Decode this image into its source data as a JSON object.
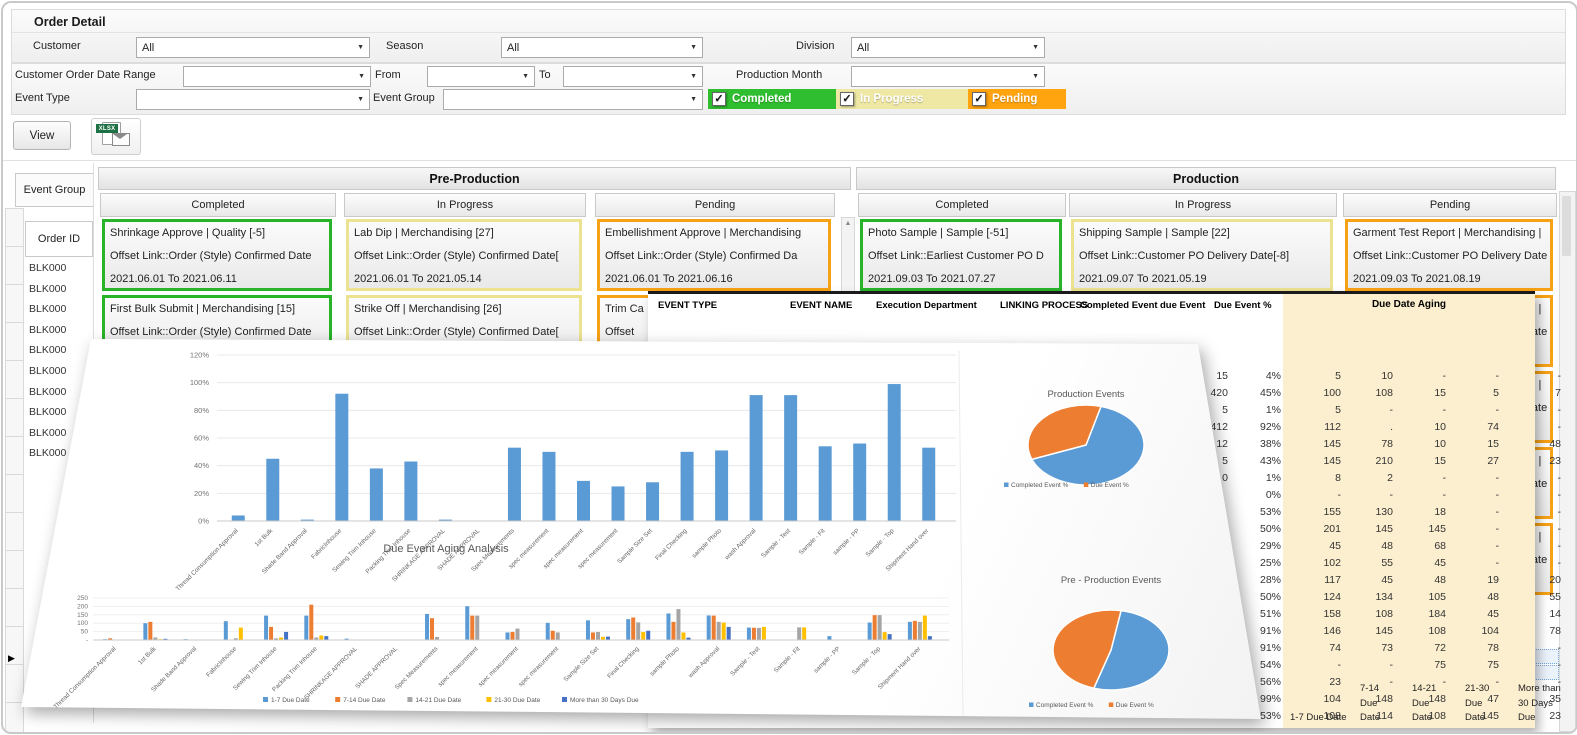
{
  "filters": {
    "title": "Order Detail",
    "customer": {
      "label": "Customer",
      "value": "All"
    },
    "season": {
      "label": "Season",
      "value": "All"
    },
    "division": {
      "label": "Division",
      "value": "All"
    },
    "order_date_range": {
      "label": "Customer Order Date Range",
      "value": ""
    },
    "from": {
      "label": "From",
      "value": ""
    },
    "to": {
      "label": "To",
      "value": ""
    },
    "production_month": {
      "label": "Production Month",
      "value": ""
    },
    "event_type": {
      "label": "Event Type",
      "value": ""
    },
    "event_group": {
      "label": "Event Group",
      "value": ""
    },
    "toggles": [
      {
        "label": "Completed",
        "color": "#2fbe2f"
      },
      {
        "label": "In Progress",
        "color": "#efe8a5"
      },
      {
        "label": "Pending",
        "color": "#ffa30f"
      }
    ]
  },
  "toolbar": {
    "view_label": "View",
    "export_icon": "xlsx-mail-icon",
    "export_tag": "XLSX"
  },
  "grid": {
    "event_group_label": "Event Group",
    "order_id_label": "Order ID",
    "order_ids": [
      "BLK000",
      "BLK000",
      "BLK000",
      "BLK000",
      "BLK000",
      "BLK000",
      "BLK000",
      "BLK000",
      "BLK000",
      "BLK000"
    ],
    "sections": [
      {
        "title": "Pre-Production",
        "columns": [
          {
            "status": "Completed",
            "accent": "#29b329",
            "cards": [
              {
                "lines": [
                  "Shrinkage Approve | Quality [-5]",
                  "Offset Link::Order (Style) Confirmed Date",
                  "2021.06.01 To 2021.06.11"
                ]
              },
              {
                "lines": [
                  "First Bulk Submit | Merchandising  [15]",
                  "Offset Link::Order (Style) Confirmed Date",
                  ""
                ]
              }
            ]
          },
          {
            "status": "In Progress",
            "accent": "#ece28f",
            "cards": [
              {
                "lines": [
                  "Lab Dip | Merchandising  [27]",
                  "Offset Link::Order (Style) Confirmed Date[",
                  "2021.06.01 To 2021.05.14"
                ]
              },
              {
                "lines": [
                  "Strike Off | Merchandising  [26]",
                  "Offset Link::Order (Style) Confirmed Date[",
                  ""
                ]
              }
            ]
          },
          {
            "status": "Pending",
            "accent": "#f7a114",
            "cards": [
              {
                "lines": [
                  "Embellishment Approve | Merchandising",
                  "Offset Link::Order (Style) Confirmed Da",
                  "2021.06.01 To 2021.06.16"
                ]
              },
              {
                "lines": [
                  "Trim Ca",
                  "Offset ",
                  ""
                ]
              }
            ]
          }
        ]
      },
      {
        "title": "Production",
        "columns": [
          {
            "status": "Completed",
            "accent": "#29b329",
            "cards": [
              {
                "lines": [
                  "Photo Sample | Sample  [-51]",
                  "Offset Link::Earliest Customer PO D",
                  "2021.09.03 To 2021.07.27"
                ]
              }
            ]
          },
          {
            "status": "In Progress",
            "accent": "#ece28f",
            "cards": [
              {
                "lines": [
                  "Shipping Sample | Sample  [22]",
                  "Offset Link::Customer PO Delivery Date[-8]",
                  "2021.09.07 To 2021.05.19"
                ]
              }
            ]
          },
          {
            "status": "Pending",
            "accent": "#f7a114",
            "cards": [
              {
                "lines": [
                  "Garment Test Report | Merchandising |",
                  "Offset Link::Customer PO Delivery Date",
                  "2021.09.03 To 2021.08.19"
                ]
              },
              {
                "lines": [
                  "Garment Test Report | Merchandising |",
                  "Offset Link::Customer PO Delivery Date",
                  ""
                ]
              },
              {
                "lines": [
                  "Garment Test Report | Merchandising |",
                  "Offset Link::Customer PO Delivery Date",
                  ""
                ]
              },
              {
                "lines": [
                  "Garment Test Report | Merchandising |",
                  "Offset Link::Customer PO Delivery Date",
                  ""
                ]
              },
              {
                "lines": [
                  "Garment Test Report | Merchandising |",
                  "Offset Link::Customer PO Delivery Date",
                  ""
                ]
              }
            ]
          }
        ]
      }
    ]
  },
  "event_table": {
    "headers": [
      "EVENT TYPE",
      "EVENT NAME",
      "Execution Department",
      "LINKING PROCESS",
      "Completed Event",
      "due Event",
      "Due Event %"
    ],
    "aging_group_label": "Due Date Aging",
    "aging_headers": [
      "1-7  Due Date",
      "7-14 Due Date",
      "14-21 Due Date",
      "21-30 Due Date",
      "More than 30 Days Due"
    ],
    "rows": [
      {
        "due": "15",
        "pct": "4%",
        "aging": [
          "5",
          "10",
          "-",
          "-",
          "-"
        ]
      },
      {
        "due": "420",
        "pct": "45%",
        "aging": [
          "100",
          "108",
          "15",
          "5",
          "7"
        ]
      },
      {
        "due": "5",
        "pct": "1%",
        "aging": [
          "5",
          "-",
          "-",
          "-",
          "-"
        ]
      },
      {
        "due": "412",
        "pct": "92%",
        "aging": [
          "112",
          ".",
          "10",
          "74",
          "-"
        ]
      },
      {
        "due": "12",
        "pct": "38%",
        "aging": [
          "145",
          "78",
          "10",
          "15",
          "48"
        ]
      },
      {
        "due": "5",
        "pct": "43%",
        "aging": [
          "145",
          "210",
          "15",
          "27",
          "23"
        ]
      },
      {
        "due": "0",
        "pct": "1%",
        "aging": [
          "8",
          "2",
          "-",
          "-",
          "-"
        ]
      },
      {
        "due": "",
        "pct": "0%",
        "aging": [
          "-",
          "-",
          "-",
          "-",
          "-"
        ]
      },
      {
        "due": "",
        "pct": "53%",
        "aging": [
          "155",
          "130",
          "18",
          "-",
          "-"
        ]
      },
      {
        "due": "",
        "pct": "50%",
        "aging": [
          "201",
          "145",
          "145",
          "-",
          "-"
        ]
      },
      {
        "due": "",
        "pct": "29%",
        "aging": [
          "45",
          "48",
          "68",
          "-",
          "-"
        ]
      },
      {
        "due": "",
        "pct": "25%",
        "aging": [
          "102",
          "55",
          "45",
          "-",
          "-"
        ]
      },
      {
        "due": "",
        "pct": "28%",
        "aging": [
          "117",
          "45",
          "48",
          "19",
          "20"
        ]
      },
      {
        "due": "",
        "pct": "50%",
        "aging": [
          "124",
          "134",
          "105",
          "48",
          "55"
        ]
      },
      {
        "due": "",
        "pct": "51%",
        "aging": [
          "158",
          "108",
          "184",
          "45",
          "14"
        ]
      },
      {
        "due": "",
        "pct": "91%",
        "aging": [
          "146",
          "145",
          "108",
          "104",
          "78"
        ]
      },
      {
        "due": "",
        "pct": "91%",
        "aging": [
          "74",
          "73",
          "72",
          "78",
          "-"
        ]
      },
      {
        "due": "",
        "pct": "54%",
        "aging": [
          "-",
          "-",
          "75",
          "75",
          "-"
        ]
      },
      {
        "due": "",
        "pct": "56%",
        "aging": [
          "23",
          "-",
          "-",
          "-",
          "-"
        ]
      },
      {
        "due": "",
        "pct": "99%",
        "aging": [
          "104",
          "148",
          "148",
          "47",
          "35"
        ]
      },
      {
        "due": "",
        "pct": "53%",
        "aging": [
          "108",
          "114",
          "108",
          "145",
          "23"
        ]
      }
    ]
  },
  "chart_data": [
    {
      "id": "due_event_pct",
      "type": "bar",
      "title": "",
      "categories": [
        "Thread Consumption Approval",
        "1st Bulk",
        "Shade Band Approval",
        "FabricInhouse",
        "Sewing Trim Inhouse",
        "Packing Trim Inhouse",
        "SHRINKAGE APPROVAL",
        "SHADE APPROVAL",
        "Spec Measurements",
        "spec measurement",
        "spec measurement",
        "spec measurement",
        "Sample Size Set",
        "Final Checking",
        "sample Photo",
        "wash Approval",
        "Sample - Test",
        "Sample - Fit",
        "sample - PP",
        "Sample - Top",
        "Shipment Hand over"
      ],
      "values": [
        4,
        45,
        1,
        92,
        38,
        43,
        1,
        0,
        53,
        50,
        29,
        25,
        28,
        50,
        51,
        91,
        91,
        54,
        56,
        99,
        53
      ],
      "xlabel": "",
      "ylabel": "",
      "ylim": [
        0,
        120
      ],
      "yticks": [
        "0%",
        "20%",
        "40%",
        "60%",
        "80%",
        "100%",
        "120%"
      ],
      "bar_color": "#5B9BD5",
      "grid": true
    },
    {
      "id": "due_event_aging",
      "type": "bar",
      "title": "Due Event Aging Analysis",
      "categories": [
        "Thread Consumption Approval",
        "1st Bulk",
        "Shade Band Approval",
        "FabricInhouse",
        "Sewing Trim Inhouse",
        "Packing Trim Inhouse",
        "SHRINKAGE APPROVAL",
        "SHADE APPROVAL",
        "Spec Measurements",
        "spec measurement",
        "spec measurement",
        "spec measurement",
        "Sample Size Set",
        "Final Checking",
        "sample Photo",
        "wash Approval",
        "Sample - Test",
        "Sample - Fit",
        "sample - PP",
        "Sample - Top",
        "Shipment Hand over"
      ],
      "series": [
        {
          "name": "1-7  Due Date",
          "color": "#5B9BD5",
          "values": [
            5,
            100,
            5,
            112,
            145,
            145,
            8,
            0,
            155,
            201,
            45,
            102,
            117,
            124,
            158,
            146,
            74,
            0,
            23,
            104,
            108
          ]
        },
        {
          "name": "7-14 Due Date",
          "color": "#ED7D31",
          "values": [
            10,
            108,
            0,
            0,
            78,
            210,
            2,
            0,
            130,
            145,
            48,
            55,
            45,
            134,
            108,
            145,
            73,
            0,
            0,
            148,
            114
          ]
        },
        {
          "name": "14-21 Due  Date",
          "color": "#A5A5A5",
          "values": [
            0,
            15,
            0,
            10,
            10,
            15,
            0,
            0,
            18,
            145,
            68,
            45,
            48,
            105,
            184,
            108,
            72,
            75,
            0,
            148,
            108
          ]
        },
        {
          "name": "21-30 Due Date",
          "color": "#FFC000",
          "values": [
            0,
            5,
            0,
            74,
            15,
            27,
            0,
            0,
            0,
            0,
            0,
            0,
            19,
            48,
            45,
            104,
            78,
            75,
            0,
            47,
            145
          ]
        },
        {
          "name": "More than 30 Days Due",
          "color": "#4472C4",
          "values": [
            0,
            7,
            0,
            0,
            48,
            23,
            0,
            0,
            0,
            0,
            0,
            0,
            20,
            55,
            14,
            78,
            0,
            0,
            0,
            35,
            23
          ]
        }
      ],
      "ylim": [
        0,
        250
      ],
      "yticks": [
        "-",
        "50",
        "100",
        "150",
        "200",
        "250"
      ],
      "legend_position": "bottom",
      "grid": true
    },
    {
      "id": "production_events",
      "type": "pie",
      "title": "Production Events",
      "start_angle": 15,
      "slices": [
        {
          "label": "Completed Event %",
          "value": 65,
          "color": "#5B9BD5"
        },
        {
          "label": "Due Event %",
          "value": 35,
          "color": "#ED7D31"
        }
      ]
    },
    {
      "id": "pre_production_events",
      "type": "pie",
      "title": "Pre - Production Events",
      "start_angle": 10,
      "slices": [
        {
          "label": "Completed Event %",
          "value": 52,
          "color": "#5B9BD5"
        },
        {
          "label": "Due Event %",
          "value": 48,
          "color": "#ED7D31"
        }
      ]
    }
  ]
}
